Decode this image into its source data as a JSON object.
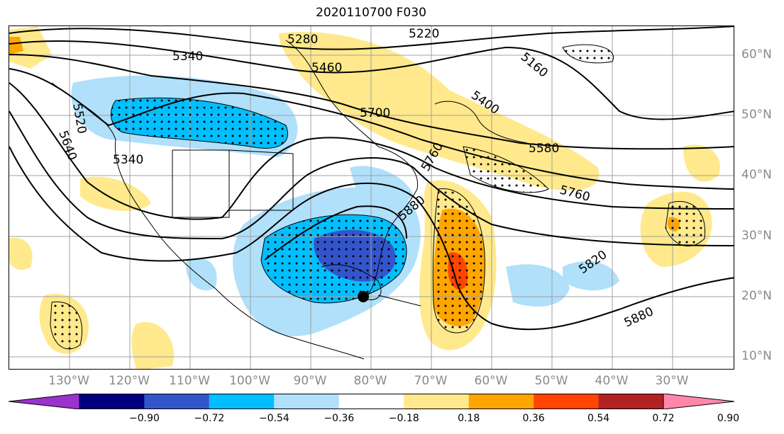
{
  "title": "2020110700 F030",
  "lat_labels": [
    "60°N",
    "50°N",
    "40°N",
    "30°N",
    "20°N",
    "10°N"
  ],
  "lon_labels": [
    "130°W",
    "120°W",
    "110°W",
    "100°W",
    "90°W",
    "80°W",
    "70°W",
    "60°W",
    "50°W",
    "40°W",
    "30°W"
  ],
  "contour_labels": [
    "5280",
    "5220",
    "5340",
    "5460",
    "5160",
    "5400",
    "5700",
    "5580",
    "5340",
    "5640",
    "5760",
    "5880",
    "5820",
    "5880",
    "5760",
    "5520"
  ],
  "colorbar": {
    "ticks": [
      "−0.90",
      "−0.72",
      "−0.54",
      "−0.36",
      "−0.18",
      "0.18",
      "0.36",
      "0.54",
      "0.72",
      "0.90"
    ],
    "colors": [
      "#9933cc",
      "#000080",
      "#3355cc",
      "#00bfff",
      "#b0e0fa",
      "#ffffff",
      "#ffe98c",
      "#ffa500",
      "#ff4500",
      "#b22222",
      "#ff88aa"
    ]
  },
  "marker": "filled-circle"
}
